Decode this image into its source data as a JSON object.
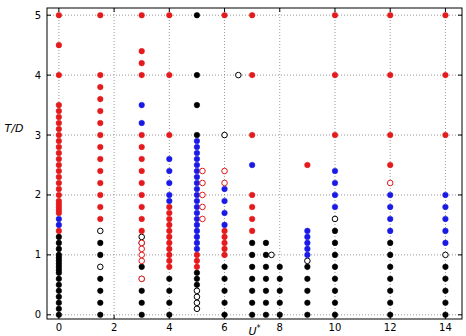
{
  "chart_data": {
    "type": "scatter",
    "x_label": "U*",
    "y_label": "T/D",
    "xlim": [
      -0.43,
      14.6
    ],
    "ylim": [
      -0.07,
      5.12
    ],
    "xticks": [
      0,
      2,
      4,
      6,
      8,
      10,
      12,
      14
    ],
    "yticks": [
      0,
      1,
      2,
      3,
      4,
      5
    ],
    "grid": true,
    "series": [
      {
        "color": "#000000",
        "marker": "circle",
        "x": [
          0,
          0,
          0,
          0,
          0,
          0,
          0,
          0,
          0,
          0,
          0,
          0,
          0,
          0,
          0,
          0,
          0,
          1.5,
          1.5,
          1.5,
          1.5,
          1.5,
          1.5,
          3,
          3,
          3,
          3,
          3,
          4,
          4,
          4,
          4,
          5,
          5,
          5,
          5,
          5,
          5,
          5,
          6,
          6,
          6,
          6,
          6,
          7,
          7,
          7,
          7,
          7,
          7,
          7,
          7.5,
          7.5,
          7.5,
          7.5,
          7.5,
          7.5,
          7.5,
          8,
          8,
          8,
          8,
          8,
          9,
          9,
          9,
          9,
          9,
          10,
          10,
          10,
          10,
          10,
          10,
          10,
          10,
          12,
          12,
          12,
          12,
          12,
          12,
          12,
          14,
          14,
          14,
          14,
          14
        ],
        "values": [
          0,
          0.1,
          0.2,
          0.3,
          0.4,
          0.5,
          0.6,
          0.7,
          0.75,
          0.8,
          0.85,
          0.9,
          0.95,
          1.0,
          1.1,
          1.2,
          1.3,
          0,
          0.2,
          0.4,
          0.6,
          1.0,
          1.2,
          0,
          0.2,
          0.4,
          0.6,
          0.8,
          0,
          0.2,
          0.4,
          0.6,
          0.5,
          0.6,
          0.7,
          3.0,
          3.5,
          4.0,
          5.0,
          0,
          0.2,
          0.4,
          0.6,
          0.8,
          0,
          0.2,
          0.4,
          0.6,
          0.8,
          1.0,
          1.2,
          0,
          0.2,
          0.4,
          0.6,
          0.8,
          1.0,
          1.2,
          0,
          0.2,
          0.4,
          0.6,
          0.8,
          0,
          0.2,
          0.4,
          0.6,
          0.8,
          0,
          0.2,
          0.4,
          0.6,
          0.8,
          1.0,
          1.2,
          1.4,
          0,
          0.2,
          0.4,
          0.6,
          0.8,
          1.0,
          1.2,
          0,
          0.2,
          0.4,
          0.6,
          0.8
        ]
      },
      {
        "color": "#000000",
        "marker": "open_circle",
        "x": [
          1.5,
          1.5,
          3,
          3,
          5,
          5,
          5,
          5,
          6,
          6.5,
          7.7,
          9,
          10,
          14
        ],
        "values": [
          0.8,
          1.4,
          1.2,
          1.3,
          0.1,
          0.2,
          0.3,
          0.4,
          3.0,
          4.0,
          1.0,
          0.9,
          1.6,
          1.0
        ]
      },
      {
        "color": "#1a1ae6",
        "marker": "circle",
        "x": [
          0,
          0,
          3,
          3,
          4,
          4,
          4,
          4,
          4,
          5,
          5,
          5,
          5,
          5,
          5,
          5,
          5,
          5,
          5,
          5,
          5,
          5,
          5,
          5,
          5,
          5,
          5,
          5,
          6,
          6,
          6,
          6,
          7,
          9,
          9,
          9,
          9,
          9,
          10,
          10,
          10,
          10,
          12,
          12,
          12,
          12,
          14,
          14,
          14,
          14,
          14
        ],
        "values": [
          1.5,
          1.6,
          3.2,
          3.5,
          1.9,
          2.0,
          2.2,
          2.4,
          2.6,
          1.1,
          1.2,
          1.3,
          1.4,
          1.5,
          1.6,
          1.7,
          1.8,
          1.9,
          2.0,
          2.1,
          2.2,
          2.3,
          2.4,
          2.5,
          2.6,
          2.7,
          2.8,
          2.9,
          1.5,
          1.7,
          1.9,
          2.1,
          2.5,
          1.0,
          1.1,
          1.2,
          1.3,
          1.4,
          1.8,
          2.0,
          2.2,
          2.4,
          1.4,
          1.6,
          1.8,
          2.0,
          1.2,
          1.4,
          1.6,
          1.8,
          2.0
        ]
      },
      {
        "color": "#e41a1c",
        "marker": "circle",
        "x": [
          0,
          0,
          0,
          0,
          0,
          0,
          0,
          0,
          0,
          0,
          0,
          0,
          0,
          0,
          0,
          0,
          0,
          0,
          0,
          0,
          0,
          0,
          0,
          0,
          0,
          1.5,
          1.5,
          1.5,
          1.5,
          1.5,
          1.5,
          1.5,
          1.5,
          1.5,
          1.5,
          1.5,
          1.5,
          1.5,
          1.5,
          3,
          3,
          3,
          3,
          3,
          3,
          3,
          3,
          3,
          3,
          3,
          3,
          3,
          4,
          4,
          4,
          4,
          4,
          4,
          4,
          4,
          4,
          4,
          4,
          4,
          4,
          4,
          5,
          5,
          5,
          6,
          6,
          6,
          6,
          6,
          6,
          7,
          7,
          7,
          7,
          7,
          7,
          7,
          9,
          10,
          10,
          10,
          12,
          12,
          12,
          12,
          14,
          14,
          14
        ],
        "values": [
          1.4,
          1.7,
          1.75,
          1.8,
          1.85,
          1.9,
          2.0,
          2.1,
          2.2,
          2.3,
          2.4,
          2.5,
          2.6,
          2.7,
          2.8,
          2.9,
          3.0,
          3.1,
          3.2,
          3.3,
          3.4,
          3.5,
          4.0,
          4.5,
          5.0,
          1.6,
          1.8,
          2.0,
          2.2,
          2.4,
          2.6,
          2.8,
          3.0,
          3.2,
          3.4,
          3.6,
          3.8,
          4.0,
          5.0,
          1.4,
          1.6,
          1.8,
          2.0,
          2.2,
          2.4,
          2.6,
          2.8,
          3.0,
          4.0,
          4.2,
          4.4,
          5.0,
          0.8,
          0.9,
          1.0,
          1.1,
          1.2,
          1.3,
          1.4,
          1.5,
          1.6,
          1.7,
          1.8,
          3.0,
          4.0,
          5.0,
          0.8,
          0.9,
          1.0,
          1.0,
          1.1,
          1.2,
          1.3,
          1.4,
          5.0,
          1.4,
          1.6,
          1.8,
          2.0,
          3.0,
          4.0,
          5.0,
          2.5,
          3.0,
          4.0,
          5.0,
          2.5,
          3.0,
          4.0,
          5.0,
          3.0,
          4.0,
          5.0
        ]
      },
      {
        "color": "#e41a1c",
        "marker": "open_circle",
        "x": [
          3,
          3,
          3,
          3,
          3,
          5.2,
          5.2,
          5.2,
          5.2,
          5.2,
          6,
          6,
          12
        ],
        "values": [
          0.6,
          0.9,
          1.0,
          1.1,
          1.2,
          1.6,
          1.8,
          2.0,
          2.2,
          2.4,
          2.2,
          2.4,
          2.2
        ]
      }
    ]
  }
}
